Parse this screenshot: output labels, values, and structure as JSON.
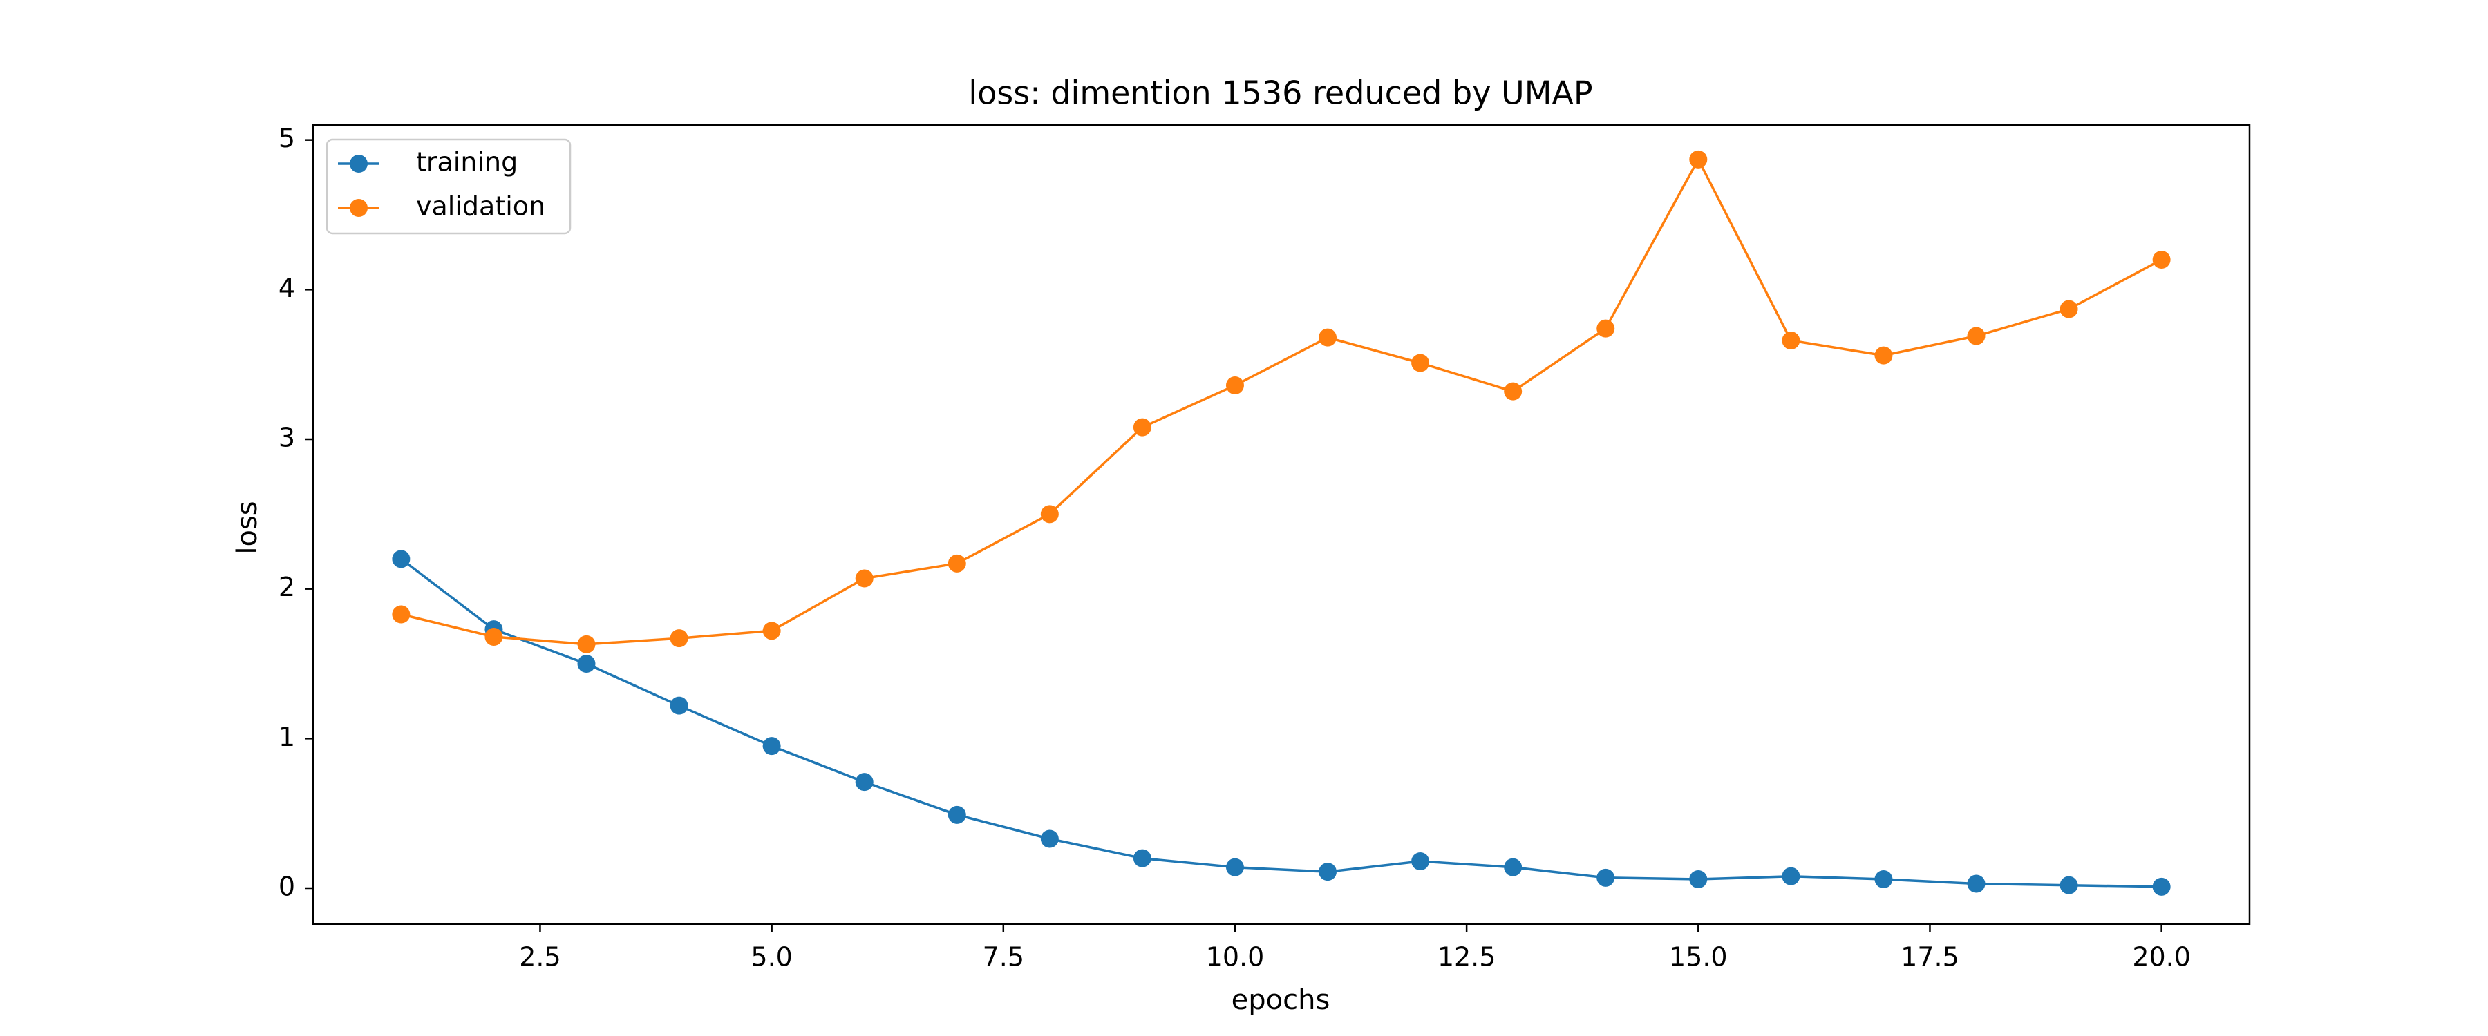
{
  "chart_data": {
    "type": "line",
    "title": "loss: dimention 1536 reduced by UMAP",
    "xlabel": "epochs",
    "ylabel": "loss",
    "xlim": [
      0.05,
      20.95
    ],
    "ylim": [
      -0.24,
      5.1
    ],
    "xticks": [
      2.5,
      5.0,
      7.5,
      10.0,
      12.5,
      15.0,
      17.5,
      20.0
    ],
    "xtick_labels": [
      "2.5",
      "5.0",
      "7.5",
      "10.0",
      "12.5",
      "15.0",
      "17.5",
      "20.0"
    ],
    "yticks": [
      0,
      1,
      2,
      3,
      4,
      5
    ],
    "ytick_labels": [
      "0",
      "1",
      "2",
      "3",
      "4",
      "5"
    ],
    "grid": false,
    "legend_position": "top-left",
    "x": [
      1,
      2,
      3,
      4,
      5,
      6,
      7,
      8,
      9,
      10,
      11,
      12,
      13,
      14,
      15,
      16,
      17,
      18,
      19,
      20
    ],
    "series": [
      {
        "name": "training",
        "color": "#1f77b4",
        "values": [
          2.2,
          1.73,
          1.5,
          1.22,
          0.95,
          0.71,
          0.49,
          0.33,
          0.2,
          0.14,
          0.11,
          0.18,
          0.14,
          0.07,
          0.06,
          0.08,
          0.06,
          0.03,
          0.02,
          0.01
        ]
      },
      {
        "name": "validation",
        "color": "#ff7f0e",
        "values": [
          1.83,
          1.68,
          1.63,
          1.67,
          1.72,
          2.07,
          2.17,
          2.5,
          3.08,
          3.36,
          3.68,
          3.51,
          3.32,
          3.74,
          4.87,
          3.66,
          3.56,
          3.69,
          3.87,
          4.2
        ]
      }
    ]
  }
}
